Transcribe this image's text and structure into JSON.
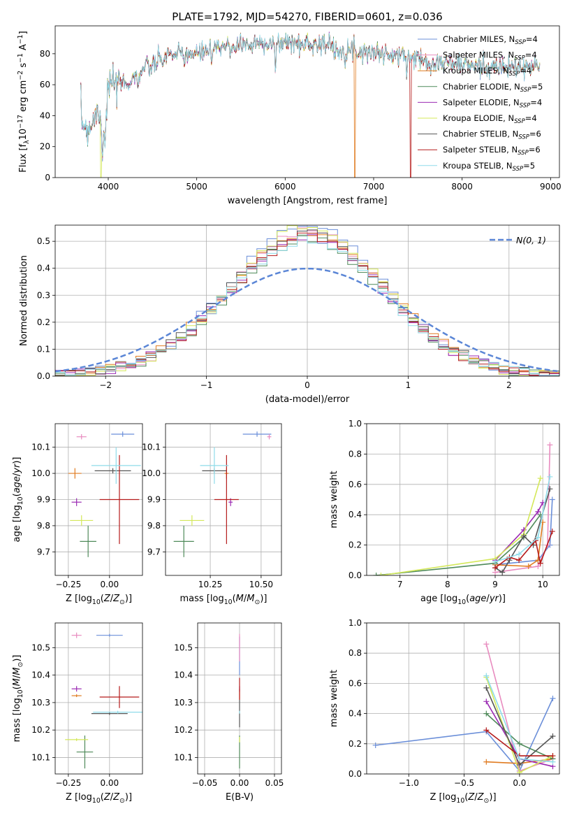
{
  "figure": {
    "title": "PLATE=1792, MJD=54270, FIBERID=0601, z=0.036"
  },
  "colors": {
    "Chabrier MILES": "#6b8fd9",
    "Salpeter MILES": "#e88bbf",
    "Kroupa MILES": "#e07b20",
    "Chabrier ELODIE": "#4f8a5a",
    "Salpeter ELODIE": "#9b2ab3",
    "Kroupa ELODIE": "#d4e85a",
    "Chabrier STELIB": "#555555",
    "Salpeter STELIB": "#b51b1b",
    "Kroupa STELIB": "#8fdcea",
    "normal": "#5b86d6"
  },
  "chart_data": [
    {
      "id": "spectrum",
      "type": "line",
      "title": "PLATE=1792, MJD=54270, FIBERID=0601, z=0.036",
      "xlabel": "wavelength [Angstrom, rest frame]",
      "ylabel": "Flux [f_λ 10^-17 erg cm^-2 s^-1 A^-1]",
      "xlim": [
        3400,
        9100
      ],
      "ylim": [
        0,
        98
      ],
      "xticks": [
        4000,
        5000,
        6000,
        7000,
        8000,
        9000
      ],
      "yticks": [
        0,
        20,
        40,
        60,
        80
      ],
      "legend_position": "top-right",
      "legend": [
        {
          "base": "Chabrier MILES, N",
          "sub": "SSP",
          "tail": "=4"
        },
        {
          "base": "Salpeter MILES, N",
          "sub": "SSP",
          "tail": "=4"
        },
        {
          "base": "Kroupa MILES, N",
          "sub": "SSP",
          "tail": "=4"
        },
        {
          "base": "Chabrier ELODIE, N",
          "sub": "SSP",
          "tail": "=5"
        },
        {
          "base": "Salpeter ELODIE, N",
          "sub": "SSP",
          "tail": "=4"
        },
        {
          "base": "Kroupa ELODIE, N",
          "sub": "SSP",
          "tail": "=4"
        },
        {
          "base": "Chabrier STELIB, N",
          "sub": "SSP",
          "tail": "=6"
        },
        {
          "base": "Salpeter STELIB, N",
          "sub": "SSP",
          "tail": "=6"
        },
        {
          "base": "Kroupa STELIB, N",
          "sub": "SSP",
          "tail": "=5"
        }
      ],
      "shape": {
        "x": [
          3690,
          3750,
          3800,
          3850,
          3900,
          3950,
          4000,
          4100,
          4200,
          4300,
          4400,
          4500,
          4600,
          4700,
          4800,
          4900,
          5000,
          5100,
          5200,
          5300,
          5400,
          5500,
          5600,
          5700,
          5800,
          5900,
          6000,
          6200,
          6400,
          6600,
          6800,
          7000,
          7200,
          7400,
          7500,
          7600,
          7800,
          8000,
          8200,
          8400,
          8600,
          8800,
          8880
        ],
        "y": [
          38,
          32,
          34,
          40,
          44,
          32,
          58,
          63,
          60,
          65,
          70,
          72,
          76,
          80,
          79,
          81,
          79,
          82,
          84,
          85,
          84,
          87,
          85,
          87,
          88,
          86,
          88,
          86,
          87,
          83,
          82,
          81,
          79,
          78,
          77,
          75,
          74,
          73,
          72,
          71,
          71,
          71,
          72
        ]
      },
      "dips": [
        {
          "series": "Kroupa ELODIE",
          "x": 3920,
          "y": 0
        },
        {
          "series": "Kroupa MILES",
          "x": 6790,
          "y": 0
        },
        {
          "series": "Salpeter STELIB",
          "x": 7420,
          "y": 0
        }
      ]
    },
    {
      "id": "residuals",
      "type": "line",
      "xlabel": "(data-model)/error",
      "ylabel": "Normed distribution",
      "xlim": [
        -2.5,
        2.5
      ],
      "ylim": [
        0,
        0.56
      ],
      "xticks": [
        -2,
        -1,
        0,
        1,
        2
      ],
      "yticks": [
        0.0,
        0.1,
        0.2,
        0.3,
        0.4,
        0.5
      ],
      "grid": true,
      "legend_position": "top-right",
      "legend_label": "N(0, 1)",
      "bin_width": 0.1
    },
    {
      "id": "age-vs-Z",
      "type": "scatter",
      "xlabel": "Z [log10(Z/Z⊙)]",
      "ylabel": "age [log10(age/yr)]",
      "xlim": [
        -0.33,
        0.2
      ],
      "ylim": [
        9.61,
        10.19
      ],
      "xticks": [
        -0.25,
        0.0
      ],
      "yticks": [
        9.7,
        9.8,
        9.9,
        10.0,
        10.1
      ],
      "grid": true,
      "points": [
        {
          "series": "Chabrier MILES",
          "x": 0.08,
          "xerr": 0.07,
          "y": 10.15,
          "yerr": 0.01
        },
        {
          "series": "Salpeter MILES",
          "x": -0.17,
          "xerr": 0.03,
          "y": 10.14,
          "yerr": 0.01
        },
        {
          "series": "Kroupa MILES",
          "x": -0.21,
          "xerr": 0.04,
          "y": 10.0,
          "yerr": 0.02
        },
        {
          "series": "Chabrier ELODIE",
          "x": -0.13,
          "xerr": 0.05,
          "y": 9.74,
          "yerr": 0.06
        },
        {
          "series": "Salpeter ELODIE",
          "x": -0.2,
          "xerr": 0.03,
          "y": 9.89,
          "yerr": 0.015
        },
        {
          "series": "Kroupa ELODIE",
          "x": -0.17,
          "xerr": 0.07,
          "y": 9.82,
          "yerr": 0.02
        },
        {
          "series": "Chabrier STELIB",
          "x": 0.02,
          "xerr": 0.11,
          "y": 10.01,
          "yerr": 0.01
        },
        {
          "series": "Salpeter STELIB",
          "x": 0.06,
          "xerr": 0.12,
          "y": 9.9,
          "yerr": 0.17
        },
        {
          "series": "Kroupa STELIB",
          "x": 0.04,
          "xerr": 0.15,
          "y": 10.03,
          "yerr": 0.07
        }
      ]
    },
    {
      "id": "age-vs-mass",
      "type": "scatter",
      "xlabel": "mass [log10(M/M⊙)]",
      "ylabel": "",
      "xlim": [
        10.03,
        10.6
      ],
      "ylim": [
        9.61,
        10.19
      ],
      "xticks": [
        10.25,
        10.5
      ],
      "yticks": [
        9.7,
        9.8,
        9.9,
        10.0,
        10.1
      ],
      "grid": true,
      "points": [
        {
          "series": "Chabrier MILES",
          "x": 10.48,
          "xerr": 0.07,
          "y": 10.15,
          "yerr": 0.01
        },
        {
          "series": "Salpeter MILES",
          "x": 10.54,
          "xerr": 0.01,
          "y": 10.14,
          "yerr": 0.01
        },
        {
          "series": "Kroupa MILES",
          "x": 10.33,
          "xerr": 0.01,
          "y": 10.0,
          "yerr": 0.02
        },
        {
          "series": "Chabrier ELODIE",
          "x": 10.12,
          "xerr": 0.05,
          "y": 9.74,
          "yerr": 0.06
        },
        {
          "series": "Salpeter ELODIE",
          "x": 10.35,
          "xerr": 0.01,
          "y": 9.89,
          "yerr": 0.015
        },
        {
          "series": "Kroupa ELODIE",
          "x": 10.16,
          "xerr": 0.06,
          "y": 9.82,
          "yerr": 0.02
        },
        {
          "series": "Chabrier STELIB",
          "x": 10.27,
          "xerr": 0.06,
          "y": 10.01,
          "yerr": 0.01
        },
        {
          "series": "Salpeter STELIB",
          "x": 10.33,
          "xerr": 0.06,
          "y": 9.9,
          "yerr": 0.17
        },
        {
          "series": "Kroupa STELIB",
          "x": 10.27,
          "xerr": 0.07,
          "y": 10.03,
          "yerr": 0.07
        }
      ]
    },
    {
      "id": "weight-vs-age",
      "type": "line",
      "xlabel": "age [log10(age/yr)]",
      "ylabel": "mass weight",
      "xlim": [
        6.3,
        10.35
      ],
      "ylim": [
        0,
        1.0
      ],
      "xticks": [
        7,
        8,
        9,
        10
      ],
      "yticks": [
        0.0,
        0.2,
        0.4,
        0.6,
        0.8,
        1.0
      ],
      "grid": true,
      "series": [
        {
          "name": "Chabrier MILES",
          "x": [
            9.0,
            9.9,
            10.15,
            10.2
          ],
          "y": [
            0.07,
            0.1,
            0.2,
            0.5
          ]
        },
        {
          "name": "Salpeter MILES",
          "x": [
            9.0,
            9.9,
            10.1,
            10.15
          ],
          "y": [
            0.02,
            0.06,
            0.2,
            0.86
          ]
        },
        {
          "name": "Kroupa MILES",
          "x": [
            9.0,
            9.7,
            9.9,
            10.0
          ],
          "y": [
            0.07,
            0.06,
            0.1,
            0.35
          ]
        },
        {
          "name": "Chabrier ELODIE",
          "x": [
            6.5,
            9.0,
            9.6,
            9.95
          ],
          "y": [
            0.0,
            0.08,
            0.25,
            0.4
          ]
        },
        {
          "name": "Salpeter ELODIE",
          "x": [
            9.0,
            9.6,
            9.9,
            10.0
          ],
          "y": [
            0.1,
            0.3,
            0.42,
            0.48
          ]
        },
        {
          "name": "Kroupa ELODIE",
          "x": [
            6.6,
            9.0,
            9.6,
            9.95
          ],
          "y": [
            0.0,
            0.11,
            0.27,
            0.64
          ]
        },
        {
          "name": "Chabrier STELIB",
          "x": [
            9.0,
            9.15,
            9.3,
            9.6,
            9.8,
            10.15
          ],
          "y": [
            0.05,
            0.02,
            0.1,
            0.26,
            0.2,
            0.57
          ]
        },
        {
          "name": "Salpeter STELIB",
          "x": [
            9.0,
            9.3,
            9.5,
            9.85,
            9.95,
            10.2
          ],
          "y": [
            0.05,
            0.12,
            0.1,
            0.23,
            0.08,
            0.29
          ]
        },
        {
          "name": "Kroupa STELIB",
          "x": [
            9.0,
            9.5,
            9.9,
            10.15
          ],
          "y": [
            0.09,
            0.14,
            0.25,
            0.65
          ]
        }
      ]
    },
    {
      "id": "mass-vs-Z",
      "type": "scatter",
      "xlabel": "Z [log10(Z/Z⊙)]",
      "ylabel": "mass [log10(M/M⊙)]",
      "xlim": [
        -0.33,
        0.2
      ],
      "ylim": [
        10.04,
        10.59
      ],
      "xticks": [
        -0.25,
        0.0
      ],
      "yticks": [
        10.1,
        10.2,
        10.3,
        10.4,
        10.5
      ],
      "grid": true,
      "points": [
        {
          "series": "Chabrier MILES",
          "x": 0.0,
          "xerr": 0.08,
          "y": 10.545,
          "yerr": 0.005
        },
        {
          "series": "Salpeter MILES",
          "x": -0.2,
          "xerr": 0.03,
          "y": 10.545,
          "yerr": 0.01
        },
        {
          "series": "Kroupa MILES",
          "x": -0.2,
          "xerr": 0.03,
          "y": 10.325,
          "yerr": 0.005
        },
        {
          "series": "Chabrier ELODIE",
          "x": -0.15,
          "xerr": 0.05,
          "y": 10.12,
          "yerr": 0.06
        },
        {
          "series": "Salpeter ELODIE",
          "x": -0.2,
          "xerr": 0.03,
          "y": 10.35,
          "yerr": 0.01
        },
        {
          "series": "Kroupa ELODIE",
          "x": -0.2,
          "xerr": 0.07,
          "y": 10.165,
          "yerr": 0.005
        },
        {
          "series": "Chabrier STELIB",
          "x": 0.0,
          "xerr": 0.11,
          "y": 10.26,
          "yerr": 0.005
        },
        {
          "series": "Salpeter STELIB",
          "x": 0.06,
          "xerr": 0.12,
          "y": 10.32,
          "yerr": 0.04
        },
        {
          "series": "Kroupa STELIB",
          "x": 0.05,
          "xerr": 0.15,
          "y": 10.265,
          "yerr": 0.005
        }
      ]
    },
    {
      "id": "mass-vs-ebv",
      "type": "scatter",
      "xlabel": "E(B-V)",
      "ylabel": "",
      "xlim": [
        -0.06,
        0.06
      ],
      "ylim": [
        10.04,
        10.59
      ],
      "xticks": [
        -0.05,
        0.0,
        0.05
      ],
      "yticks": [
        10.1,
        10.2,
        10.3,
        10.4,
        10.5
      ],
      "grid": true,
      "points": [
        {
          "series": "Chabrier MILES",
          "x": 0.0,
          "y": 10.47,
          "yerr": 0.07
        },
        {
          "series": "Salpeter MILES",
          "x": 0.0,
          "y": 10.5,
          "yerr": 0.05
        },
        {
          "series": "Kroupa MILES",
          "x": 0.0,
          "y": 10.33,
          "yerr": 0.02
        },
        {
          "series": "Chabrier ELODIE",
          "x": 0.0,
          "y": 10.12,
          "yerr": 0.06
        },
        {
          "series": "Salpeter ELODIE",
          "x": 0.0,
          "y": 10.35,
          "yerr": 0.01
        },
        {
          "series": "Kroupa ELODIE",
          "x": 0.0,
          "y": 10.165,
          "yerr": 0.01
        },
        {
          "series": "Chabrier STELIB",
          "x": 0.0,
          "y": 10.26,
          "yerr": 0.05
        },
        {
          "series": "Salpeter STELIB",
          "x": 0.0,
          "y": 10.35,
          "yerr": 0.04
        },
        {
          "series": "Kroupa STELIB",
          "x": 0.0,
          "y": 10.265,
          "yerr": 0.005
        }
      ]
    },
    {
      "id": "weight-vs-Z",
      "type": "line",
      "xlabel": "Z [log10(Z/Z⊙)]",
      "ylabel": "mass weight",
      "xlim": [
        -1.38,
        0.36
      ],
      "ylim": [
        0,
        1.0
      ],
      "xticks": [
        -1.0,
        -0.5,
        0.0
      ],
      "yticks": [
        0.0,
        0.2,
        0.4,
        0.6,
        0.8,
        1.0
      ],
      "grid": true,
      "series": [
        {
          "name": "Chabrier MILES",
          "x": [
            -1.3,
            -0.3,
            0.0,
            0.3
          ],
          "y": [
            0.19,
            0.28,
            0.02,
            0.5
          ]
        },
        {
          "name": "Salpeter MILES",
          "x": [
            -0.3,
            0.0,
            0.3
          ],
          "y": [
            0.86,
            0.02,
            0.1
          ]
        },
        {
          "name": "Kroupa MILES",
          "x": [
            -0.3,
            0.0,
            0.3
          ],
          "y": [
            0.08,
            0.07,
            0.1
          ]
        },
        {
          "name": "Chabrier ELODIE",
          "x": [
            -0.3,
            0.0,
            0.3
          ],
          "y": [
            0.4,
            0.2,
            0.1
          ]
        },
        {
          "name": "Salpeter ELODIE",
          "x": [
            -0.3,
            0.0,
            0.3
          ],
          "y": [
            0.48,
            0.1,
            0.05
          ]
        },
        {
          "name": "Kroupa ELODIE",
          "x": [
            -0.3,
            0.0,
            0.3
          ],
          "y": [
            0.64,
            0.01,
            0.12
          ]
        },
        {
          "name": "Chabrier STELIB",
          "x": [
            -0.3,
            0.0,
            0.3
          ],
          "y": [
            0.57,
            0.06,
            0.25
          ]
        },
        {
          "name": "Salpeter STELIB",
          "x": [
            -0.3,
            0.0,
            0.3
          ],
          "y": [
            0.29,
            0.12,
            0.12
          ]
        },
        {
          "name": "Kroupa STELIB",
          "x": [
            -0.3,
            0.0,
            0.3
          ],
          "y": [
            0.65,
            0.1,
            0.08
          ]
        }
      ]
    }
  ]
}
